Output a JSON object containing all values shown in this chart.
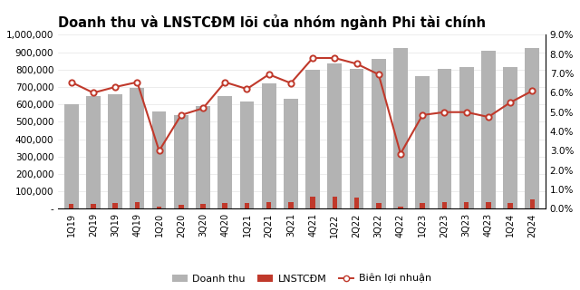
{
  "title": "Doanh thu và LNSTCĐM lõi của nhóm ngành Phi tài chính",
  "categories": [
    "1Q19",
    "2Q19",
    "3Q19",
    "4Q19",
    "1Q20",
    "2Q20",
    "3Q20",
    "4Q20",
    "1Q21",
    "2Q21",
    "3Q21",
    "4Q21",
    "1Q22",
    "2Q22",
    "3Q22",
    "4Q22",
    "1Q23",
    "2Q23",
    "3Q23",
    "4Q23",
    "1Q24",
    "2Q24"
  ],
  "doanh_thu": [
    600000,
    650000,
    660000,
    695000,
    560000,
    540000,
    590000,
    650000,
    615000,
    720000,
    630000,
    800000,
    835000,
    805000,
    860000,
    925000,
    760000,
    805000,
    815000,
    910000,
    815000,
    925000
  ],
  "lnstcdm": [
    30000,
    28000,
    33000,
    38000,
    12000,
    25000,
    30000,
    35000,
    35000,
    40000,
    38000,
    68000,
    68000,
    65000,
    35000,
    15000,
    35000,
    40000,
    38000,
    40000,
    35000,
    52000
  ],
  "bien_loi_nhuan": [
    6.55,
    6.0,
    6.3,
    6.55,
    3.0,
    4.85,
    5.2,
    6.55,
    6.2,
    6.95,
    6.5,
    7.8,
    7.8,
    7.5,
    6.95,
    2.85,
    4.85,
    5.0,
    5.0,
    4.75,
    5.5,
    6.1
  ],
  "bar_color_dt": "#b3b3b3",
  "bar_color_ln": "#c0392b",
  "line_color": "#c0392b",
  "marker_facecolor": "#ffffff",
  "marker_edgecolor": "#c0392b",
  "ylim_left": [
    0,
    1000000
  ],
  "ylim_right": [
    0,
    9.0
  ],
  "yticks_left_vals": [
    0,
    100000,
    200000,
    300000,
    400000,
    500000,
    600000,
    700000,
    800000,
    900000,
    1000000
  ],
  "yticks_left_labels": [
    "-",
    "100,000",
    "200,000",
    "300,000",
    "400,000",
    "500,000",
    "600,000",
    "700,000",
    "800,000",
    "900,000",
    "1,000,000"
  ],
  "yticks_right_vals": [
    0.0,
    1.0,
    2.0,
    3.0,
    4.0,
    5.0,
    6.0,
    7.0,
    8.0,
    9.0
  ],
  "yticks_right_labels": [
    "0.0%",
    "1.0%",
    "2.0%",
    "3.0%",
    "4.0%",
    "5.0%",
    "6.0%",
    "7.0%",
    "8.0%",
    "9.0%"
  ],
  "legend_labels": [
    "Doanh thu",
    "LNSTCĐM",
    "Biên lợi nhuận"
  ],
  "background_color": "#ffffff",
  "title_fontsize": 10.5,
  "tick_fontsize": 7.5,
  "legend_fontsize": 8
}
